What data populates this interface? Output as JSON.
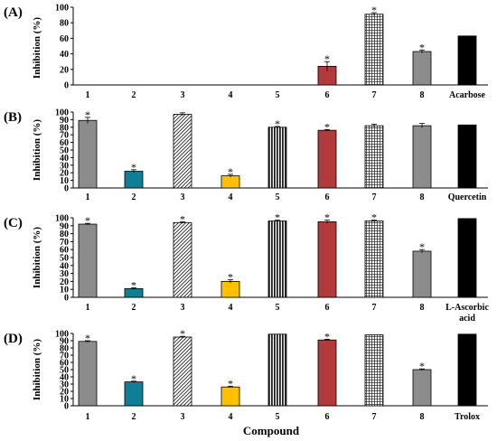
{
  "x_title": "Compound",
  "pattern_colors": {
    "fill_solid_gray": "#8c8c8c",
    "teal": "#0e7f96",
    "yellow": "#ffc000",
    "red": "#b33a3a",
    "black": "#000000"
  },
  "chart_data": [
    {
      "type": "bar",
      "panel_label": "(A)",
      "ylabel": "Inhibition (%)",
      "ylim": [
        0,
        100
      ],
      "yticks": [
        "0",
        "20",
        "40",
        "60",
        "80",
        "100"
      ],
      "categories": [
        "1",
        "2",
        "3",
        "4",
        "5",
        "6",
        "7",
        "8",
        "Acarbose"
      ],
      "values": [
        0,
        0,
        0,
        0,
        0,
        24,
        91,
        43,
        63
      ],
      "errors": [
        0,
        0,
        0,
        0,
        0,
        6,
        2,
        2,
        0
      ],
      "significant": [
        false,
        false,
        false,
        false,
        false,
        true,
        true,
        true,
        false
      ]
    },
    {
      "type": "bar",
      "panel_label": "(B)",
      "ylabel": "Inhibition (%)",
      "ylim": [
        0,
        100
      ],
      "yticks": [
        "0",
        "10",
        "20",
        "30",
        "40",
        "50",
        "60",
        "70",
        "80",
        "90",
        "100"
      ],
      "categories": [
        "1",
        "2",
        "3",
        "4",
        "5",
        "6",
        "7",
        "8",
        "Quercetin"
      ],
      "values": [
        89,
        22,
        97,
        16,
        80,
        76,
        82,
        82,
        83
      ],
      "errors": [
        4,
        2,
        2,
        2,
        1,
        1,
        2,
        3,
        0
      ],
      "significant": [
        true,
        true,
        false,
        true,
        true,
        true,
        false,
        false,
        false
      ]
    },
    {
      "type": "bar",
      "panel_label": "(C)",
      "ylabel": "Inhibition (%)",
      "ylim": [
        0,
        100
      ],
      "yticks": [
        "0",
        "10",
        "20",
        "30",
        "40",
        "50",
        "60",
        "70",
        "80",
        "90",
        "100"
      ],
      "categories": [
        "1",
        "2",
        "3",
        "4",
        "5",
        "6",
        "7",
        "8",
        "L-Ascorbic acid"
      ],
      "values": [
        92,
        11,
        94,
        20,
        96,
        95,
        96,
        58,
        99
      ],
      "errors": [
        1,
        1,
        1,
        2,
        1,
        2,
        1,
        2,
        0
      ],
      "significant": [
        true,
        true,
        true,
        true,
        true,
        true,
        true,
        true,
        false
      ]
    },
    {
      "type": "bar",
      "panel_label": "(D)",
      "ylabel": "Inhibition (%)",
      "ylim": [
        0,
        100
      ],
      "yticks": [
        "0",
        "10",
        "20",
        "30",
        "40",
        "50",
        "60",
        "70",
        "80",
        "90",
        "100"
      ],
      "categories": [
        "1",
        "2",
        "3",
        "4",
        "5",
        "6",
        "7",
        "8",
        "Trolox"
      ],
      "values": [
        89,
        33,
        95,
        26,
        99,
        91,
        98,
        50,
        99
      ],
      "errors": [
        1,
        1,
        1,
        1,
        0,
        1,
        0,
        1,
        0
      ],
      "significant": [
        true,
        true,
        true,
        true,
        false,
        true,
        false,
        true,
        false
      ]
    }
  ]
}
